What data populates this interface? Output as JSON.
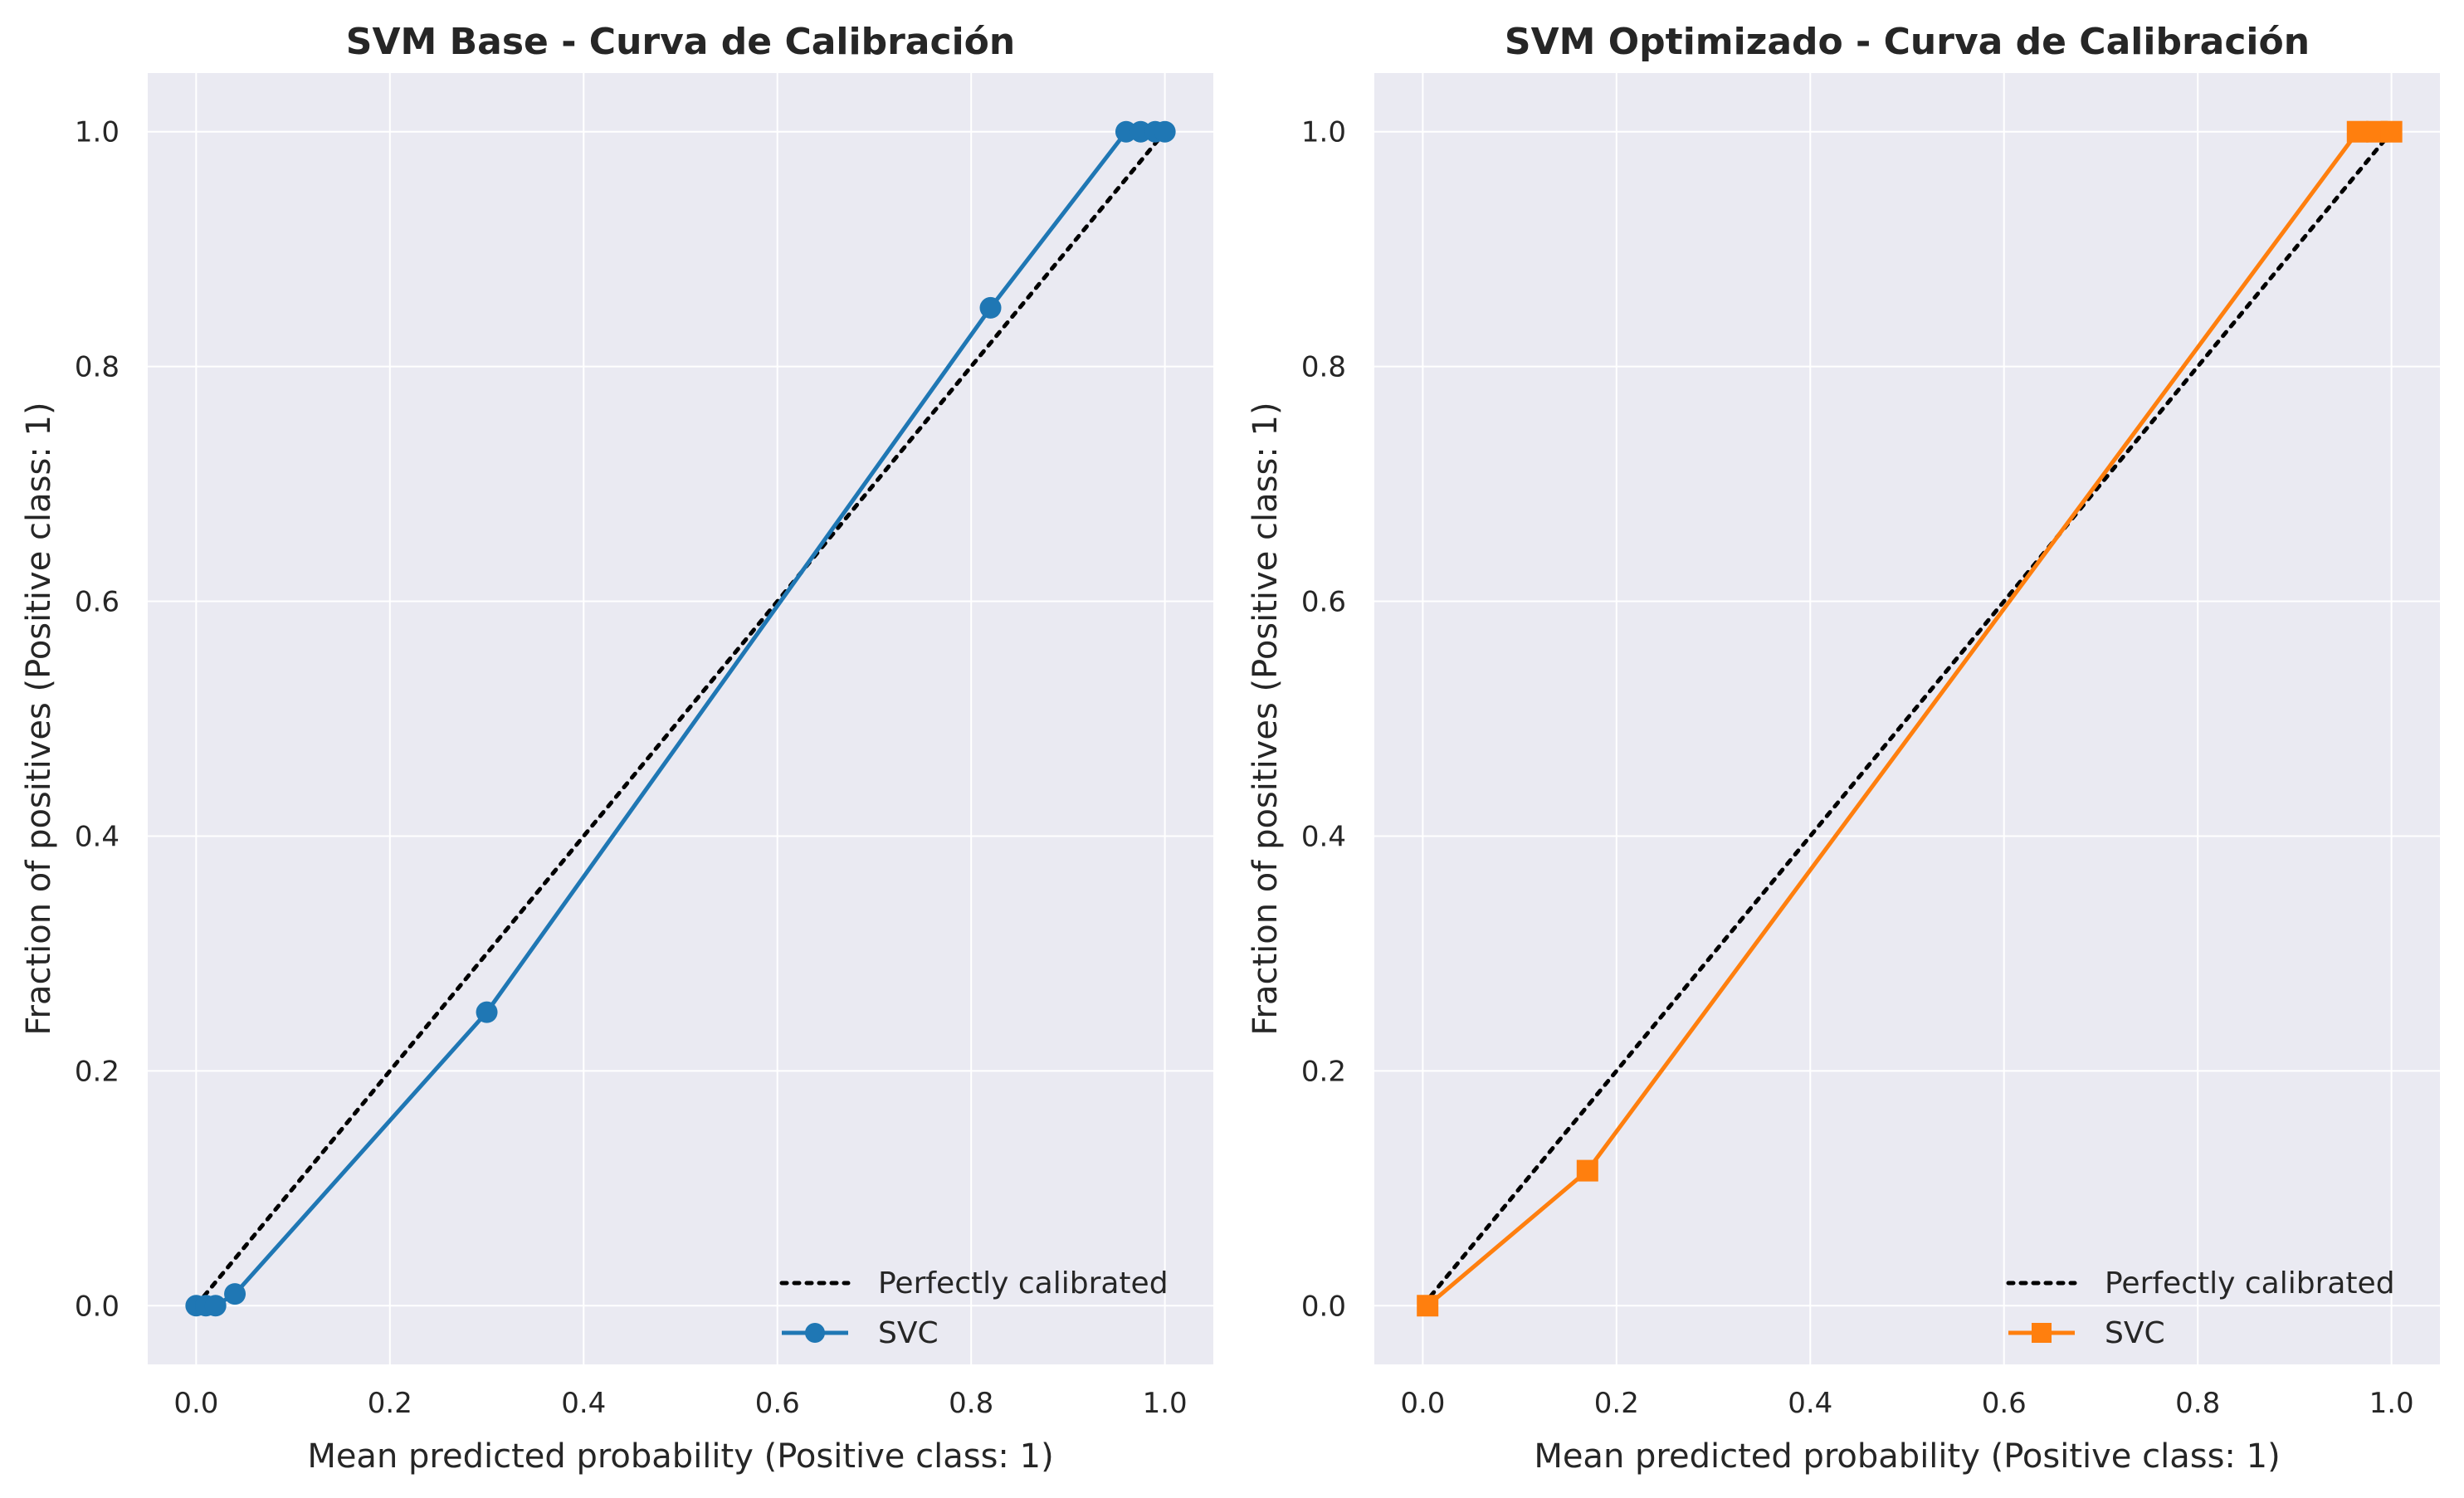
{
  "theme": {
    "plot_background": "#eaeaf2",
    "grid_color": "#ffffff",
    "text_color": "#262626",
    "reference_line_color": "#000000"
  },
  "chart_data": [
    {
      "type": "line",
      "title": "SVM Base - Curva de Calibración",
      "xlabel": "Mean predicted probability (Positive class: 1)",
      "ylabel": "Fraction of positives (Positive class: 1)",
      "xlim": [
        -0.05,
        1.05
      ],
      "ylim": [
        -0.05,
        1.05
      ],
      "xticks": [
        "0.0",
        "0.2",
        "0.4",
        "0.6",
        "0.8",
        "1.0"
      ],
      "yticks": [
        "0.0",
        "0.2",
        "0.4",
        "0.6",
        "0.8",
        "1.0"
      ],
      "grid": true,
      "legend_position": "lower-right",
      "reference": {
        "name": "Perfectly calibrated",
        "x": [
          0,
          1
        ],
        "y": [
          0,
          1
        ],
        "style": "dotted"
      },
      "series": [
        {
          "name": "SVC",
          "color": "#1f77b4",
          "marker": "circle",
          "x": [
            0.0,
            0.01,
            0.02,
            0.04,
            0.3,
            0.82,
            0.96,
            0.975,
            0.99,
            1.0
          ],
          "y": [
            0.0,
            0.0,
            0.0,
            0.01,
            0.25,
            0.85,
            1.0,
            1.0,
            1.0,
            1.0
          ]
        }
      ]
    },
    {
      "type": "line",
      "title": "SVM Optimizado - Curva de Calibración",
      "xlabel": "Mean predicted probability (Positive class: 1)",
      "ylabel": "Fraction of positives (Positive class: 1)",
      "xlim": [
        -0.05,
        1.05
      ],
      "ylim": [
        -0.05,
        1.05
      ],
      "xticks": [
        "0.0",
        "0.2",
        "0.4",
        "0.6",
        "0.8",
        "1.0"
      ],
      "yticks": [
        "0.0",
        "0.2",
        "0.4",
        "0.6",
        "0.8",
        "1.0"
      ],
      "grid": true,
      "legend_position": "lower-right",
      "reference": {
        "name": "Perfectly calibrated",
        "x": [
          0,
          1
        ],
        "y": [
          0,
          1
        ],
        "style": "dotted"
      },
      "series": [
        {
          "name": "SVC",
          "color": "#ff7f0e",
          "marker": "square",
          "x": [
            0.005,
            0.17,
            0.965,
            0.985,
            1.0
          ],
          "y": [
            0.0,
            0.115,
            1.0,
            1.0,
            1.0
          ]
        }
      ]
    }
  ]
}
